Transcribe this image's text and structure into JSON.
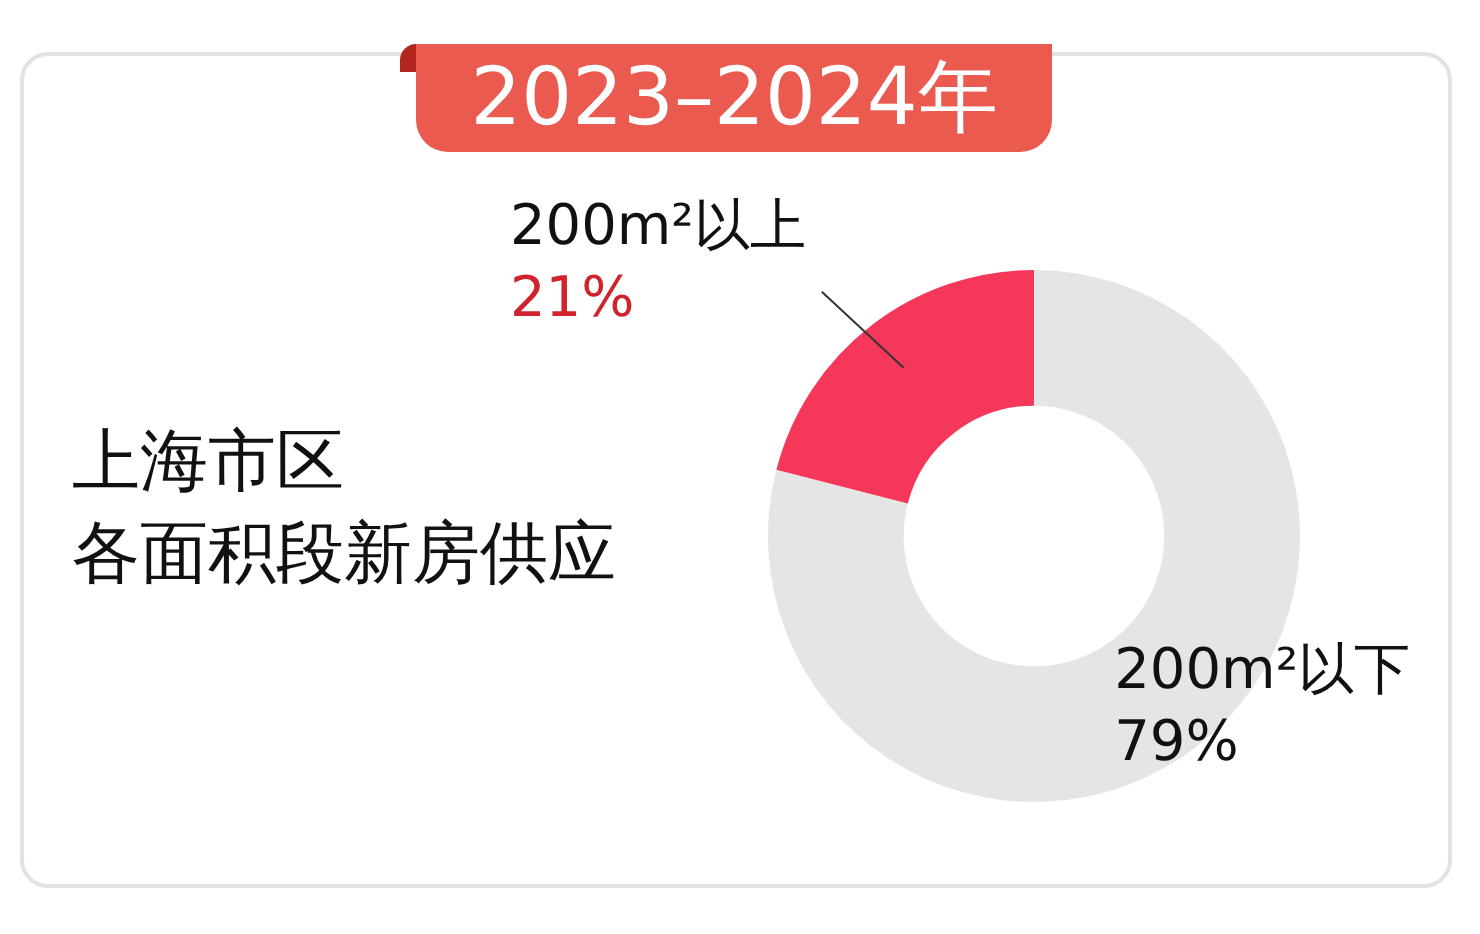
{
  "chart_data": {
    "type": "donut",
    "title": "2023–2024年",
    "subtitle": "上海市区",
    "annotations": [
      "各面积段新房供应"
    ],
    "categories": [
      "200m²以下",
      "200m²以上"
    ],
    "values": [
      79,
      21
    ],
    "value_labels": [
      "79%",
      "21%"
    ],
    "colors": [
      "#e6e5e6",
      "#f5385a"
    ],
    "legend": false
  }
}
